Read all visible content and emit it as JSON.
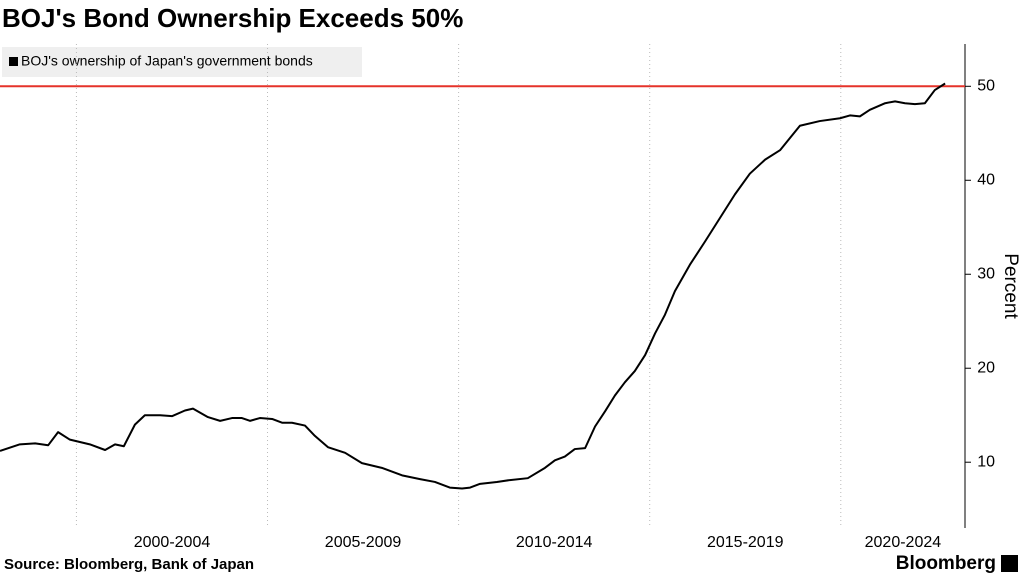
{
  "chart_data": {
    "type": "line",
    "title": "BOJ's Bond Ownership Exceeds 50%",
    "y_axis_label": "Percent",
    "source": "Source:  Bloomberg, Bank of Japan",
    "brand": "Bloomberg",
    "x": [
      1998.0,
      1998.52,
      1998.92,
      1999.26,
      1999.52,
      1999.83,
      2000.35,
      2000.75,
      2001.01,
      2001.24,
      2001.53,
      2001.79,
      2002.19,
      2002.5,
      2002.84,
      2003.05,
      2003.44,
      2003.76,
      2004.07,
      2004.33,
      2004.54,
      2004.8,
      2005.12,
      2005.38,
      2005.64,
      2005.98,
      2006.24,
      2006.58,
      2007.03,
      2007.47,
      2007.99,
      2008.52,
      2008.99,
      2009.38,
      2009.77,
      2010.09,
      2010.3,
      2010.56,
      2011.0,
      2011.34,
      2011.81,
      2012.26,
      2012.52,
      2012.78,
      2013.04,
      2013.31,
      2013.57,
      2013.83,
      2014.09,
      2014.35,
      2014.61,
      2014.88,
      2015.14,
      2015.4,
      2015.66,
      2016.05,
      2016.45,
      2016.84,
      2017.23,
      2017.62,
      2018.02,
      2018.41,
      2018.67,
      2018.93,
      2019.45,
      2019.98,
      2020.24,
      2020.5,
      2020.76,
      2021.16,
      2021.42,
      2021.68,
      2021.94,
      2022.2,
      2022.46,
      2022.73
    ],
    "series": [
      {
        "name": "BOJ's ownership of Japan's government bonds",
        "color": "#000000",
        "values": [
          11.2,
          11.9,
          12.0,
          11.8,
          13.2,
          12.4,
          11.9,
          11.3,
          11.9,
          11.7,
          14.0,
          15.0,
          15.0,
          14.9,
          15.5,
          15.7,
          14.8,
          14.4,
          14.7,
          14.7,
          14.4,
          14.7,
          14.6,
          14.2,
          14.2,
          13.9,
          12.8,
          11.6,
          11.0,
          9.9,
          9.4,
          8.6,
          8.2,
          7.9,
          7.3,
          7.2,
          7.3,
          7.7,
          7.9,
          8.1,
          8.3,
          9.4,
          10.2,
          10.6,
          11.4,
          11.5,
          13.8,
          15.4,
          17.1,
          18.5,
          19.7,
          21.4,
          23.7,
          25.7,
          28.2,
          31.0,
          33.5,
          36.0,
          38.5,
          40.7,
          42.2,
          43.2,
          44.5,
          45.8,
          46.3,
          46.6,
          46.9,
          46.8,
          47.5,
          48.2,
          48.4,
          48.2,
          48.1,
          48.2,
          49.6,
          50.3
        ]
      }
    ],
    "reference_line": {
      "value": 50,
      "color": "#e5332a"
    },
    "xlim": [
      1998,
      2023.25
    ],
    "xticks": [
      {
        "value": 2000,
        "label": "2000-2004"
      },
      {
        "value": 2005,
        "label": "2005-2009"
      },
      {
        "value": 2010,
        "label": "2010-2014"
      },
      {
        "value": 2015,
        "label": "2015-2019"
      },
      {
        "value": 2020,
        "label": "2020-2024"
      }
    ],
    "ylim": [
      3,
      54.5
    ],
    "yticks": [
      10,
      20,
      30,
      40,
      50
    ],
    "x_grid": true
  }
}
